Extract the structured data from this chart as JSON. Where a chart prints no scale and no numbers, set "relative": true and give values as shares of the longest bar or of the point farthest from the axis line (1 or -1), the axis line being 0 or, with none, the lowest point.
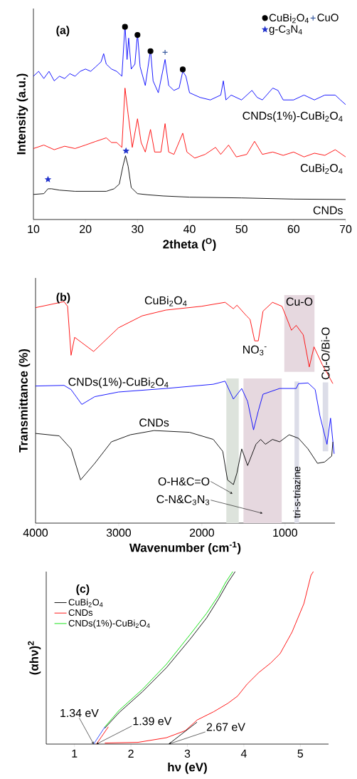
{
  "chart_data": [
    {
      "type": "line",
      "relative": true,
      "title": "(a)",
      "xlabel": "2theta ($^{O}$)",
      "ylabel": "Intensity (a.u.)",
      "xlim": [
        10,
        70
      ],
      "xticks": [
        10,
        20,
        30,
        40,
        50,
        60,
        70
      ],
      "legend": "top right",
      "series": [
        {
          "name": "CNDs(1%)-CuBi$_{2}$O$_{4}$",
          "color": "#0000ff",
          "x": [
            10,
            11,
            12,
            13,
            14,
            15,
            16,
            17,
            18,
            19,
            20,
            21,
            22,
            23,
            23.5,
            24,
            25,
            26,
            27,
            27.6,
            28,
            28.3,
            28.8,
            29.5,
            30,
            30.5,
            31.5,
            32.5,
            33,
            34,
            35.3,
            36,
            37,
            38,
            38.7,
            39.3,
            40,
            42,
            44,
            46,
            46.5,
            47,
            48,
            50,
            52,
            53,
            54,
            56,
            57,
            58,
            60,
            62,
            64,
            66,
            68,
            69,
            70
          ],
          "values": [
            0.737,
            0.762,
            0.725,
            0.762,
            0.713,
            0.737,
            0.725,
            0.75,
            0.737,
            0.762,
            0.774,
            0.762,
            0.786,
            0.811,
            0.853,
            0.799,
            0.774,
            0.762,
            0.737,
            1.0,
            0.823,
            0.933,
            0.774,
            0.799,
            0.957,
            0.786,
            0.689,
            0.872,
            0.713,
            0.652,
            0.823,
            0.689,
            0.664,
            0.676,
            0.762,
            0.737,
            0.652,
            0.628,
            0.615,
            0.64,
            0.713,
            0.615,
            0.64,
            0.615,
            0.664,
            0.628,
            0.615,
            0.676,
            0.664,
            0.615,
            0.615,
            0.64,
            0.615,
            0.64,
            0.64,
            0.615,
            0.591
          ]
        },
        {
          "name": "CuBi$_{2}$O$_{4}$",
          "color": "#ff0000",
          "x": [
            10,
            12,
            14,
            16,
            18,
            20,
            22,
            24,
            25,
            26,
            27,
            27.6,
            28.2,
            29,
            30,
            30.7,
            31.5,
            32.5,
            33.3,
            34.5,
            35.3,
            36,
            37,
            38.7,
            39.5,
            41,
            43,
            45,
            46,
            47.5,
            49,
            51,
            52.5,
            54,
            56,
            58,
            60,
            62,
            64,
            66,
            68,
            70
          ],
          "values": [
            0.365,
            0.383,
            0.359,
            0.377,
            0.365,
            0.383,
            0.402,
            0.42,
            0.396,
            0.396,
            0.371,
            0.676,
            0.542,
            0.371,
            0.518,
            0.396,
            0.347,
            0.463,
            0.347,
            0.347,
            0.493,
            0.347,
            0.335,
            0.444,
            0.347,
            0.316,
            0.335,
            0.371,
            0.335,
            0.383,
            0.322,
            0.335,
            0.402,
            0.335,
            0.347,
            0.33,
            0.347,
            0.322,
            0.341,
            0.33,
            0.359,
            0.322
          ]
        },
        {
          "name": "CNDs",
          "color": "#000000",
          "x": [
            10,
            12,
            12.8,
            13.5,
            15,
            18,
            22,
            24,
            25.5,
            26.5,
            27.2,
            27.7,
            28.2,
            28.8,
            30,
            32,
            35,
            40,
            50,
            60,
            70
          ],
          "values": [
            0.129,
            0.133,
            0.158,
            0.158,
            0.151,
            0.145,
            0.145,
            0.145,
            0.158,
            0.182,
            0.274,
            0.328,
            0.274,
            0.164,
            0.133,
            0.127,
            0.121,
            0.115,
            0.111,
            0.105,
            0.103
          ]
        },
        {
          "name": "CuBi$_{2}$O$_{4}$",
          "type": "scatter",
          "marker": "circle",
          "color": "#000000",
          "x": [
            27.6,
            30,
            32.5,
            38.7
          ],
          "values": [
            0.991,
            0.949,
            0.866,
            0.772
          ]
        },
        {
          "name": "CuO",
          "type": "scatter",
          "marker": "cross",
          "color": "#3a5ba0",
          "x": [
            35.3
          ],
          "values": [
            0.86
          ]
        },
        {
          "name": "g-C$_{3}$N$_{4}$",
          "type": "scatter",
          "marker": "star",
          "color": "#2233cc",
          "x": [
            12.8,
            27.8
          ],
          "values": [
            0.206,
            0.353
          ]
        }
      ]
    },
    {
      "type": "line",
      "relative": true,
      "title": "(b)",
      "xlabel": "Wavenumber (cm$^{-1}$)",
      "ylabel": "Transmittance (%)",
      "xlim": [
        4000,
        400
      ],
      "xticks": [
        4000,
        3000,
        2000,
        1000
      ],
      "series": [
        {
          "name": "CuBi$_{2}$O$_{4}$",
          "color": "#ff0000",
          "x": [
            4000,
            3658,
            3615,
            3573,
            3530,
            3302,
            3003,
            2718,
            2433,
            2006,
            1721,
            1621,
            1578,
            1464,
            1421,
            1365,
            1322,
            1265,
            1151,
            1037,
            923,
            866,
            781,
            709,
            652,
            553,
            496,
            425
          ],
          "values": [
            0.973,
            1.0,
            0.979,
            0.758,
            0.839,
            0.775,
            0.882,
            0.936,
            0.962,
            0.979,
            0.997,
            0.968,
            0.984,
            0.936,
            0.92,
            0.823,
            0.823,
            0.957,
            0.997,
            0.979,
            0.871,
            0.893,
            0.85,
            0.705,
            0.796,
            0.716,
            0.678,
            0.63
          ]
        },
        {
          "name": "CNDs(1%)-CuBi$_{2}$O$_{4}$",
          "color": "#0000ff",
          "x": [
            4000,
            3658,
            3573,
            3444,
            3288,
            3003,
            2433,
            1863,
            1721,
            1621,
            1521,
            1450,
            1379,
            1322,
            1265,
            1065,
            866,
            838,
            724,
            638,
            581,
            496,
            453,
            410
          ],
          "values": [
            0.619,
            0.622,
            0.603,
            0.536,
            0.571,
            0.592,
            0.608,
            0.627,
            0.641,
            0.56,
            0.608,
            0.549,
            0.421,
            0.506,
            0.582,
            0.608,
            0.608,
            0.63,
            0.633,
            0.603,
            0.485,
            0.356,
            0.474,
            0.313
          ]
        },
        {
          "name": "CNDs",
          "color": "#000000",
          "x": [
            4000,
            3715,
            3573,
            3459,
            3288,
            3088,
            2860,
            2575,
            2148,
            1863,
            1749,
            1692,
            1621,
            1578,
            1521,
            1450,
            1350,
            1293,
            1236,
            1151,
            1065,
            951,
            838,
            724,
            610,
            524,
            439,
            425
          ],
          "values": [
            0.405,
            0.394,
            0.335,
            0.195,
            0.27,
            0.367,
            0.399,
            0.418,
            0.41,
            0.378,
            0.324,
            0.195,
            0.174,
            0.227,
            0.335,
            0.26,
            0.356,
            0.378,
            0.356,
            0.378,
            0.367,
            0.399,
            0.383,
            0.335,
            0.27,
            0.276,
            0.303,
            0.367
          ]
        }
      ],
      "bands": [
        {
          "axis": "x",
          "from": 1706,
          "to": 1557,
          "label": "O-H&C=O",
          "color": "#dde3dc"
        },
        {
          "axis": "x",
          "from": 1500,
          "to": 1040,
          "label": "C-N&C$_{3}$N$_{3}$",
          "color": "#e6d8df"
        },
        {
          "axis": "x",
          "from": 1009,
          "to": 646,
          "label": "Cu-O",
          "color": "#e6d8df"
        },
        {
          "axis": "x",
          "from": 886,
          "to": 832,
          "label": "tri-s-triazine",
          "color": "#dcdde8"
        },
        {
          "axis": "x",
          "from": 547,
          "to": 481,
          "label": "Cu-O/Bi-O",
          "color": "#dcdde8"
        }
      ],
      "annotations": [
        {
          "text": "NO$_{3}$$^{-}$",
          "x": 1365,
          "y": 0.823
        }
      ]
    },
    {
      "type": "line",
      "relative": true,
      "title": "(c)",
      "xlabel": "hν (eV)",
      "ylabel": "(αhν)$^{2}$",
      "xlim": [
        0.5,
        5.5
      ],
      "xticks": [
        1,
        2,
        3,
        4,
        5
      ],
      "legend": "top left",
      "series": [
        {
          "name": "CuBi$_{2}$O$_{4}$",
          "color": "#000000",
          "x": [
            1.537,
            1.789,
            2.209,
            2.629,
            3.048,
            3.342,
            3.552,
            3.72,
            3.846
          ],
          "values": [
            0.092,
            0.182,
            0.305,
            0.443,
            0.608,
            0.732,
            0.842,
            0.938,
            1.0
          ]
        },
        {
          "name": "CNDs",
          "color": "#ff0000",
          "x": [
            1.537,
            2.125,
            2.629,
            2.964,
            3.174,
            3.468,
            3.72,
            3.888,
            4.056,
            4.265,
            4.475,
            4.643,
            4.853,
            5.063,
            5.189,
            5.231
          ],
          "values": [
            0.006,
            0.01,
            0.037,
            0.078,
            0.14,
            0.188,
            0.237,
            0.278,
            0.347,
            0.415,
            0.47,
            0.525,
            0.649,
            0.814,
            0.979,
            1.0
          ]
        },
        {
          "name": "CNDs(1%)-CuBi$_{2}$O$_{4}$",
          "color": "#00e000",
          "x": [
            1.537,
            1.789,
            2.209,
            2.629,
            3.048,
            3.342,
            3.552,
            3.678,
            3.804
          ],
          "values": [
            0.099,
            0.195,
            0.319,
            0.463,
            0.635,
            0.759,
            0.862,
            0.938,
            1.0
          ]
        },
        {
          "color": "#2040ff",
          "x": [
            1.34,
            1.54
          ],
          "values": [
            0.0,
            0.1
          ]
        },
        {
          "color": "#ff0000",
          "x": [
            1.39,
            1.6
          ],
          "values": [
            0.0,
            0.1
          ]
        },
        {
          "color": "#000000",
          "x": [
            2.67,
            3.17
          ],
          "values": [
            0.0,
            0.127
          ]
        }
      ],
      "annotations": [
        {
          "text": "1.34 eV",
          "x": 1.34,
          "y": 0
        },
        {
          "text": "1.39 eV",
          "x": 1.39,
          "y": 0
        },
        {
          "text": "2.67 eV",
          "x": 2.67,
          "y": 0
        }
      ]
    }
  ]
}
